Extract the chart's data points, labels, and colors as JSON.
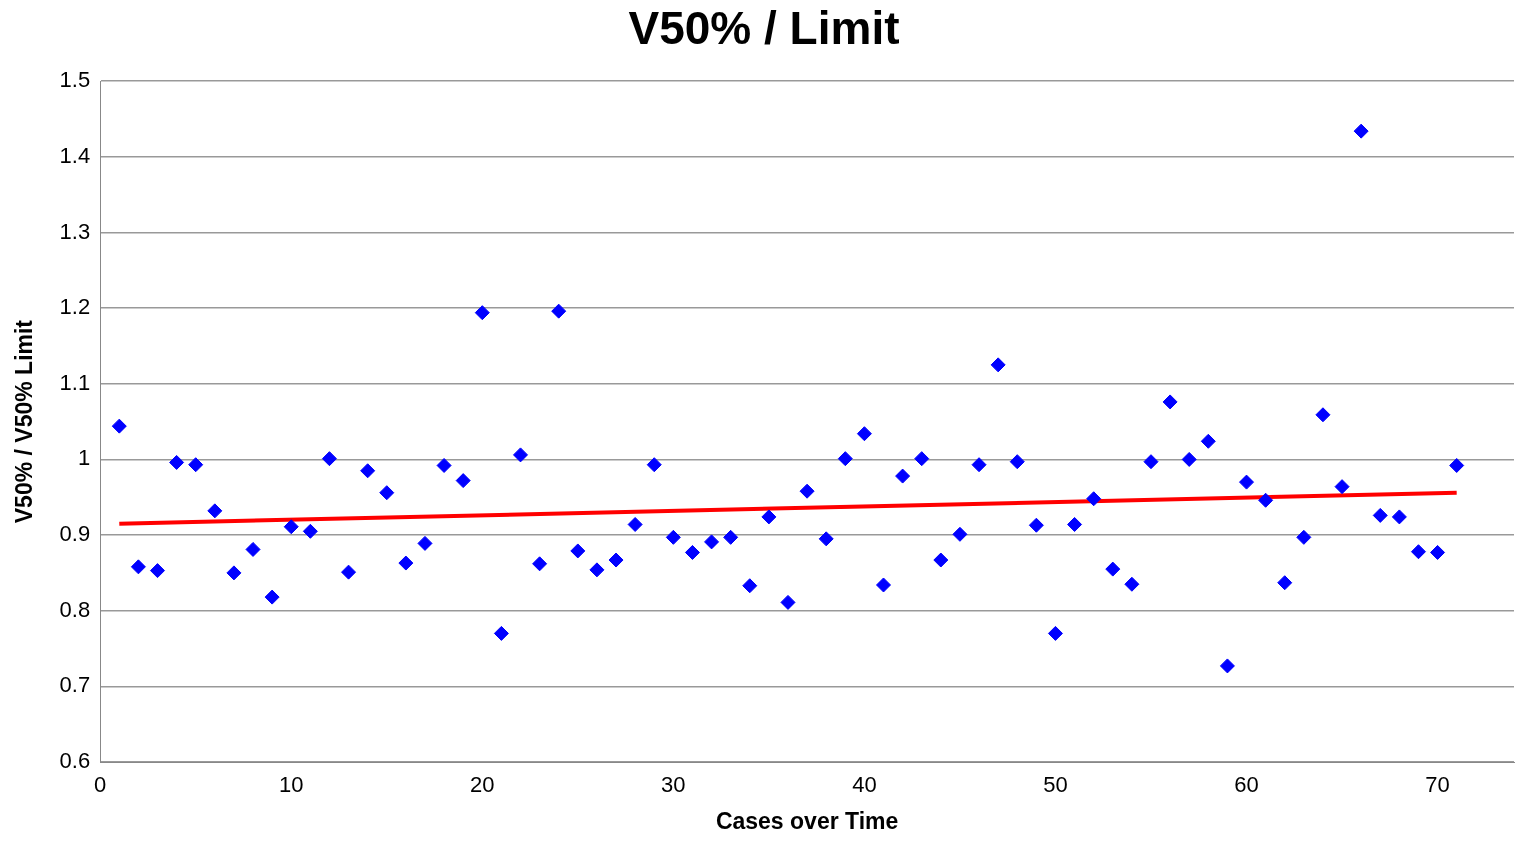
{
  "chart_data": {
    "type": "scatter",
    "title": "V50% / Limit",
    "xlabel": "Cases over Time",
    "ylabel": "V50% / V50% Limit",
    "xlim": [
      0,
      74
    ],
    "xticks": [
      0,
      10,
      20,
      30,
      40,
      50,
      60,
      70
    ],
    "ylim": [
      0.6,
      1.5
    ],
    "yticks": [
      0.6,
      0.7,
      0.8,
      0.9,
      1,
      1.1,
      1.2,
      1.3,
      1.4,
      1.5
    ],
    "grid": "y",
    "marker": "diamond",
    "series": [
      {
        "type": "scatter",
        "color": "#0000ff",
        "x": [
          1,
          2,
          3,
          4,
          5,
          6,
          7,
          8,
          9,
          10,
          11,
          12,
          13,
          14,
          15,
          16,
          17,
          18,
          19,
          20,
          21,
          22,
          23,
          24,
          25,
          26,
          27,
          28,
          29,
          30,
          31,
          32,
          33,
          34,
          35,
          36,
          37,
          38,
          39,
          40,
          41,
          42,
          43,
          44,
          45,
          46,
          47,
          48,
          49,
          50,
          51,
          52,
          53,
          54,
          55,
          56,
          57,
          58,
          59,
          60,
          61,
          62,
          63,
          64,
          65,
          66,
          67,
          68,
          69,
          70,
          71
        ],
        "values": [
          1.044,
          0.858,
          0.853,
          0.996,
          0.993,
          0.932,
          0.85,
          0.881,
          0.818,
          0.911,
          0.905,
          1.001,
          0.851,
          0.985,
          0.956,
          0.863,
          0.889,
          0.992,
          0.972,
          1.194,
          0.77,
          1.006,
          0.862,
          1.196,
          0.879,
          0.854,
          0.867,
          0.914,
          0.993,
          0.897,
          0.877,
          0.891,
          0.897,
          0.833,
          0.924,
          0.811,
          0.958,
          0.895,
          1.001,
          1.034,
          0.834,
          0.978,
          1.001,
          0.867,
          0.901,
          0.993,
          1.125,
          0.997,
          0.913,
          0.77,
          0.914,
          0.948,
          0.855,
          0.835,
          0.997,
          1.076,
          1,
          1.024,
          0.727,
          0.97,
          0.946,
          0.837,
          0.897,
          1.059,
          0.964,
          1.434,
          0.926,
          0.924,
          0.878,
          0.877,
          0.992
        ]
      },
      {
        "type": "line",
        "color": "#ff0000",
        "line_style": "solid",
        "marker": "none",
        "x": [
          1,
          71
        ],
        "values": [
          0.915,
          0.956
        ]
      }
    ]
  }
}
